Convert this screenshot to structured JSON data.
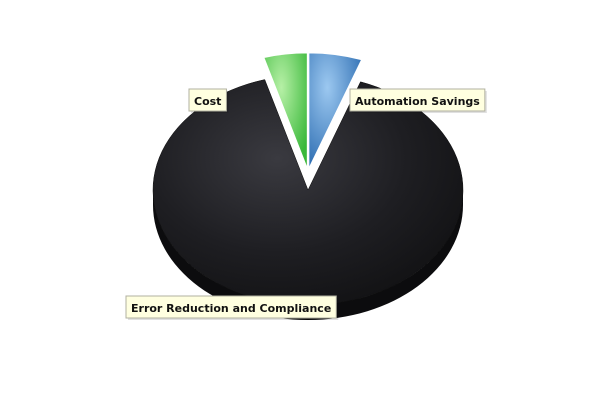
{
  "chart_data": {
    "type": "pie",
    "style": "3d-exploded",
    "labels": [
      "Automation Savings",
      "Error Reduction and Compliance",
      "Cost"
    ],
    "values": [
      5.5,
      90,
      4.5
    ],
    "colors": [
      "#4a90d0",
      "#1b1b1e",
      "#4ec84e"
    ],
    "exploded": [
      "Automation Savings",
      "Cost"
    ],
    "legend": "none",
    "label_style": "callout"
  }
}
